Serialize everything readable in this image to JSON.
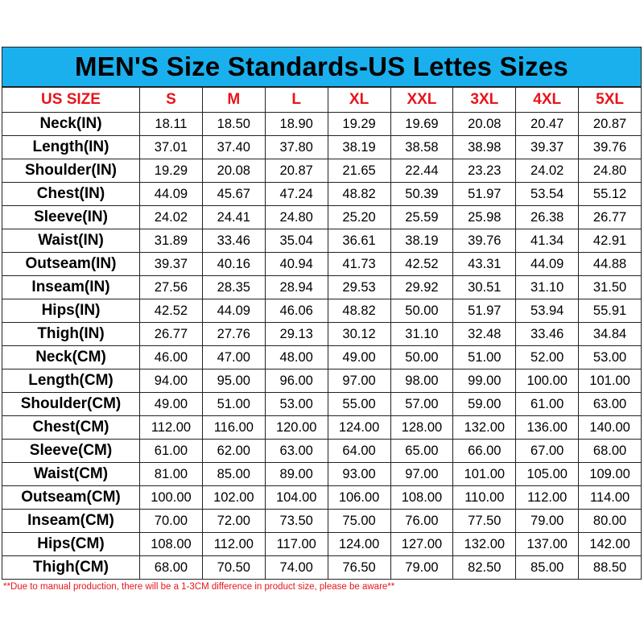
{
  "title": "MEN'S Size Standards-US Lettes Sizes",
  "accent_color": "#1ab0ee",
  "header_text_color": "#e8141a",
  "header": [
    "US SIZE",
    "S",
    "M",
    "L",
    "XL",
    "XXL",
    "3XL",
    "4XL",
    "5XL"
  ],
  "rows": [
    {
      "label": "Neck(IN)",
      "values": [
        "18.11",
        "18.50",
        "18.90",
        "19.29",
        "19.69",
        "20.08",
        "20.47",
        "20.87"
      ]
    },
    {
      "label": "Length(IN)",
      "values": [
        "37.01",
        "37.40",
        "37.80",
        "38.19",
        "38.58",
        "38.98",
        "39.37",
        "39.76"
      ]
    },
    {
      "label": "Shoulder(IN)",
      "values": [
        "19.29",
        "20.08",
        "20.87",
        "21.65",
        "22.44",
        "23.23",
        "24.02",
        "24.80"
      ]
    },
    {
      "label": "Chest(IN)",
      "values": [
        "44.09",
        "45.67",
        "47.24",
        "48.82",
        "50.39",
        "51.97",
        "53.54",
        "55.12"
      ]
    },
    {
      "label": "Sleeve(IN)",
      "values": [
        "24.02",
        "24.41",
        "24.80",
        "25.20",
        "25.59",
        "25.98",
        "26.38",
        "26.77"
      ]
    },
    {
      "label": "Waist(IN)",
      "values": [
        "31.89",
        "33.46",
        "35.04",
        "36.61",
        "38.19",
        "39.76",
        "41.34",
        "42.91"
      ]
    },
    {
      "label": "Outseam(IN)",
      "values": [
        "39.37",
        "40.16",
        "40.94",
        "41.73",
        "42.52",
        "43.31",
        "44.09",
        "44.88"
      ]
    },
    {
      "label": "Inseam(IN)",
      "values": [
        "27.56",
        "28.35",
        "28.94",
        "29.53",
        "29.92",
        "30.51",
        "31.10",
        "31.50"
      ]
    },
    {
      "label": "Hips(IN)",
      "values": [
        "42.52",
        "44.09",
        "46.06",
        "48.82",
        "50.00",
        "51.97",
        "53.94",
        "55.91"
      ]
    },
    {
      "label": "Thigh(IN)",
      "values": [
        "26.77",
        "27.76",
        "29.13",
        "30.12",
        "31.10",
        "32.48",
        "33.46",
        "34.84"
      ]
    },
    {
      "label": "Neck(CM)",
      "values": [
        "46.00",
        "47.00",
        "48.00",
        "49.00",
        "50.00",
        "51.00",
        "52.00",
        "53.00"
      ]
    },
    {
      "label": "Length(CM)",
      "values": [
        "94.00",
        "95.00",
        "96.00",
        "97.00",
        "98.00",
        "99.00",
        "100.00",
        "101.00"
      ]
    },
    {
      "label": "Shoulder(CM)",
      "values": [
        "49.00",
        "51.00",
        "53.00",
        "55.00",
        "57.00",
        "59.00",
        "61.00",
        "63.00"
      ]
    },
    {
      "label": "Chest(CM)",
      "values": [
        "112.00",
        "116.00",
        "120.00",
        "124.00",
        "128.00",
        "132.00",
        "136.00",
        "140.00"
      ]
    },
    {
      "label": "Sleeve(CM)",
      "values": [
        "61.00",
        "62.00",
        "63.00",
        "64.00",
        "65.00",
        "66.00",
        "67.00",
        "68.00"
      ]
    },
    {
      "label": "Waist(CM)",
      "values": [
        "81.00",
        "85.00",
        "89.00",
        "93.00",
        "97.00",
        "101.00",
        "105.00",
        "109.00"
      ]
    },
    {
      "label": "Outseam(CM)",
      "values": [
        "100.00",
        "102.00",
        "104.00",
        "106.00",
        "108.00",
        "110.00",
        "112.00",
        "114.00"
      ]
    },
    {
      "label": "Inseam(CM)",
      "values": [
        "70.00",
        "72.00",
        "73.50",
        "75.00",
        "76.00",
        "77.50",
        "79.00",
        "80.00"
      ]
    },
    {
      "label": "Hips(CM)",
      "values": [
        "108.00",
        "112.00",
        "117.00",
        "124.00",
        "127.00",
        "132.00",
        "137.00",
        "142.00"
      ]
    },
    {
      "label": "Thigh(CM)",
      "values": [
        "68.00",
        "70.50",
        "74.00",
        "76.50",
        "79.00",
        "82.50",
        "85.00",
        "88.50"
      ]
    }
  ],
  "note": "**Due to manual production, there will be a 1-3CM difference in product size, please be aware**"
}
